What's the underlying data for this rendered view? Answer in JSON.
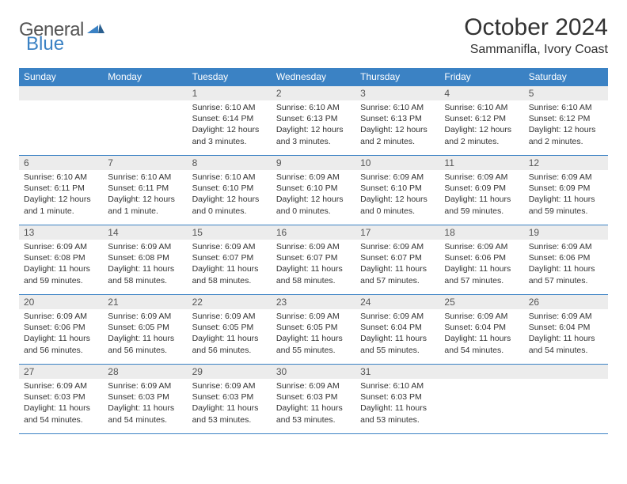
{
  "logo": {
    "text1": "General",
    "text2": "Blue"
  },
  "title": "October 2024",
  "location": "Sammanifla, Ivory Coast",
  "colors": {
    "header_bg": "#3b82c4",
    "header_text": "#ffffff",
    "daynum_bg": "#ececec",
    "border": "#3b82c4",
    "body_text": "#333333"
  },
  "daysOfWeek": [
    "Sunday",
    "Monday",
    "Tuesday",
    "Wednesday",
    "Thursday",
    "Friday",
    "Saturday"
  ],
  "weeks": [
    [
      null,
      null,
      {
        "n": "1",
        "sr": "6:10 AM",
        "ss": "6:14 PM",
        "dl": "12 hours and 3 minutes."
      },
      {
        "n": "2",
        "sr": "6:10 AM",
        "ss": "6:13 PM",
        "dl": "12 hours and 3 minutes."
      },
      {
        "n": "3",
        "sr": "6:10 AM",
        "ss": "6:13 PM",
        "dl": "12 hours and 2 minutes."
      },
      {
        "n": "4",
        "sr": "6:10 AM",
        "ss": "6:12 PM",
        "dl": "12 hours and 2 minutes."
      },
      {
        "n": "5",
        "sr": "6:10 AM",
        "ss": "6:12 PM",
        "dl": "12 hours and 2 minutes."
      }
    ],
    [
      {
        "n": "6",
        "sr": "6:10 AM",
        "ss": "6:11 PM",
        "dl": "12 hours and 1 minute."
      },
      {
        "n": "7",
        "sr": "6:10 AM",
        "ss": "6:11 PM",
        "dl": "12 hours and 1 minute."
      },
      {
        "n": "8",
        "sr": "6:10 AM",
        "ss": "6:10 PM",
        "dl": "12 hours and 0 minutes."
      },
      {
        "n": "9",
        "sr": "6:09 AM",
        "ss": "6:10 PM",
        "dl": "12 hours and 0 minutes."
      },
      {
        "n": "10",
        "sr": "6:09 AM",
        "ss": "6:10 PM",
        "dl": "12 hours and 0 minutes."
      },
      {
        "n": "11",
        "sr": "6:09 AM",
        "ss": "6:09 PM",
        "dl": "11 hours and 59 minutes."
      },
      {
        "n": "12",
        "sr": "6:09 AM",
        "ss": "6:09 PM",
        "dl": "11 hours and 59 minutes."
      }
    ],
    [
      {
        "n": "13",
        "sr": "6:09 AM",
        "ss": "6:08 PM",
        "dl": "11 hours and 59 minutes."
      },
      {
        "n": "14",
        "sr": "6:09 AM",
        "ss": "6:08 PM",
        "dl": "11 hours and 58 minutes."
      },
      {
        "n": "15",
        "sr": "6:09 AM",
        "ss": "6:07 PM",
        "dl": "11 hours and 58 minutes."
      },
      {
        "n": "16",
        "sr": "6:09 AM",
        "ss": "6:07 PM",
        "dl": "11 hours and 58 minutes."
      },
      {
        "n": "17",
        "sr": "6:09 AM",
        "ss": "6:07 PM",
        "dl": "11 hours and 57 minutes."
      },
      {
        "n": "18",
        "sr": "6:09 AM",
        "ss": "6:06 PM",
        "dl": "11 hours and 57 minutes."
      },
      {
        "n": "19",
        "sr": "6:09 AM",
        "ss": "6:06 PM",
        "dl": "11 hours and 57 minutes."
      }
    ],
    [
      {
        "n": "20",
        "sr": "6:09 AM",
        "ss": "6:06 PM",
        "dl": "11 hours and 56 minutes."
      },
      {
        "n": "21",
        "sr": "6:09 AM",
        "ss": "6:05 PM",
        "dl": "11 hours and 56 minutes."
      },
      {
        "n": "22",
        "sr": "6:09 AM",
        "ss": "6:05 PM",
        "dl": "11 hours and 56 minutes."
      },
      {
        "n": "23",
        "sr": "6:09 AM",
        "ss": "6:05 PM",
        "dl": "11 hours and 55 minutes."
      },
      {
        "n": "24",
        "sr": "6:09 AM",
        "ss": "6:04 PM",
        "dl": "11 hours and 55 minutes."
      },
      {
        "n": "25",
        "sr": "6:09 AM",
        "ss": "6:04 PM",
        "dl": "11 hours and 54 minutes."
      },
      {
        "n": "26",
        "sr": "6:09 AM",
        "ss": "6:04 PM",
        "dl": "11 hours and 54 minutes."
      }
    ],
    [
      {
        "n": "27",
        "sr": "6:09 AM",
        "ss": "6:03 PM",
        "dl": "11 hours and 54 minutes."
      },
      {
        "n": "28",
        "sr": "6:09 AM",
        "ss": "6:03 PM",
        "dl": "11 hours and 54 minutes."
      },
      {
        "n": "29",
        "sr": "6:09 AM",
        "ss": "6:03 PM",
        "dl": "11 hours and 53 minutes."
      },
      {
        "n": "30",
        "sr": "6:09 AM",
        "ss": "6:03 PM",
        "dl": "11 hours and 53 minutes."
      },
      {
        "n": "31",
        "sr": "6:10 AM",
        "ss": "6:03 PM",
        "dl": "11 hours and 53 minutes."
      },
      null,
      null
    ]
  ],
  "labels": {
    "sunrise": "Sunrise:",
    "sunset": "Sunset:",
    "daylight": "Daylight:"
  }
}
